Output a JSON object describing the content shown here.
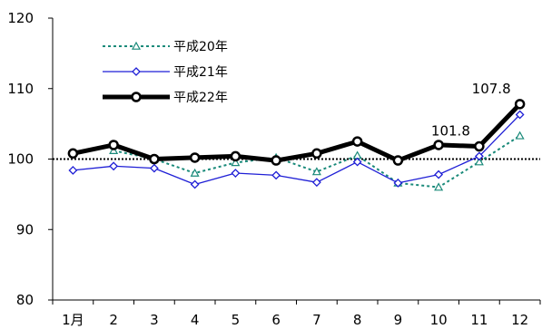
{
  "chart_data": {
    "type": "line",
    "categories": [
      "1月",
      "2",
      "3",
      "4",
      "5",
      "6",
      "7",
      "8",
      "9",
      "10",
      "11",
      "12"
    ],
    "ylim": [
      80,
      120
    ],
    "yticks": [
      "80",
      "90",
      "100",
      "110",
      "120"
    ],
    "grid": false,
    "reference_line": 100,
    "legend_position": "top-left",
    "series": [
      {
        "name": "平成20年",
        "color": "#1a8a7a",
        "line_style": "dotted",
        "marker": "triangle-open",
        "values": [
          null,
          101.2,
          100.0,
          98.0,
          99.5,
          100.2,
          98.2,
          100.5,
          96.6,
          96.0,
          99.6,
          103.3
        ]
      },
      {
        "name": "平成21年",
        "color": "#1f1fd6",
        "line_style": "solid",
        "marker": "diamond-open",
        "values": [
          98.4,
          99.0,
          98.7,
          96.4,
          98.0,
          97.7,
          96.7,
          99.6,
          96.6,
          97.8,
          100.4,
          106.3
        ]
      },
      {
        "name": "平成22年",
        "color": "#000000",
        "line_style": "thick",
        "marker": "circle-open",
        "values": [
          100.8,
          102.0,
          100.0,
          100.2,
          100.4,
          99.8,
          100.8,
          102.5,
          99.8,
          102.0,
          101.8,
          107.8
        ]
      }
    ],
    "annotations": [
      {
        "series": 2,
        "index": 10,
        "text": "101.8"
      },
      {
        "series": 2,
        "index": 11,
        "text": "107.8"
      }
    ]
  }
}
